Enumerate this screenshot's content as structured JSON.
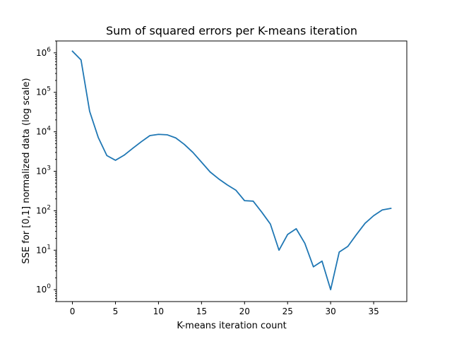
{
  "chart_data": {
    "type": "line",
    "title": "Sum of squared errors per K-means iteration",
    "xlabel": "K-means iteration count",
    "ylabel": "SSE for [0,1] normalized data (log scale)",
    "xlim": [
      -1.85,
      38.85
    ],
    "ylim": [
      0.5,
      2000000
    ],
    "yscale": "log",
    "grid": false,
    "x_ticks": [
      0,
      5,
      10,
      15,
      20,
      25,
      30,
      35
    ],
    "y_ticks": [
      {
        "base": "10",
        "exp": "0",
        "value": 1
      },
      {
        "base": "10",
        "exp": "1",
        "value": 10
      },
      {
        "base": "10",
        "exp": "2",
        "value": 100
      },
      {
        "base": "10",
        "exp": "3",
        "value": 1000
      },
      {
        "base": "10",
        "exp": "4",
        "value": 10000
      },
      {
        "base": "10",
        "exp": "5",
        "value": 100000
      },
      {
        "base": "10",
        "exp": "6",
        "value": 1000000
      }
    ],
    "series": [
      {
        "color": "#1f77b4",
        "x": [
          0,
          1,
          2,
          3,
          4,
          5,
          6,
          7,
          8,
          9,
          10,
          11,
          12,
          13,
          14,
          15,
          16,
          17,
          18,
          19,
          20,
          21,
          22,
          23,
          24,
          25,
          26,
          27,
          28,
          29,
          30,
          31,
          32,
          33,
          34,
          35,
          36,
          37
        ],
        "y": [
          1100000,
          660000,
          33000,
          7200,
          2500,
          1900,
          2550,
          3800,
          5600,
          8000,
          8600,
          8400,
          7000,
          4800,
          3000,
          1700,
          960,
          640,
          450,
          330,
          180,
          175,
          92,
          46,
          10,
          25,
          35,
          15,
          3.8,
          5.3,
          1.0,
          9.0,
          12.5,
          25,
          48,
          75,
          105,
          115
        ]
      }
    ]
  }
}
